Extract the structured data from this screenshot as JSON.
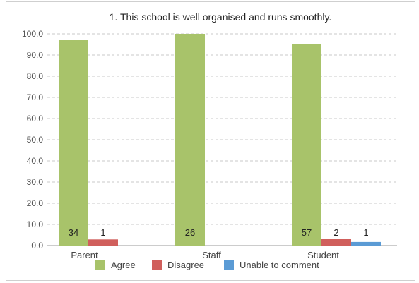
{
  "chart_data": {
    "type": "bar",
    "title": "1. This school is well organised and runs smoothly.",
    "xlabel": "",
    "ylabel": "",
    "ylim": [
      0,
      100
    ],
    "yticks": [
      "0.0",
      "10.0",
      "20.0",
      "30.0",
      "40.0",
      "50.0",
      "60.0",
      "70.0",
      "80.0",
      "90.0",
      "100.0"
    ],
    "grid": true,
    "legend_position": "bottom",
    "categories": [
      "Parent",
      "Staff",
      "Student"
    ],
    "series": [
      {
        "name": "Agree",
        "color": "#a8c36a",
        "values": [
          97.1,
          100.0,
          95.0
        ],
        "labels": [
          "34",
          "26",
          "57"
        ]
      },
      {
        "name": "Disagree",
        "color": "#d05f5c",
        "values": [
          2.9,
          0,
          3.3
        ],
        "labels": [
          "1",
          "",
          "2"
        ]
      },
      {
        "name": "Unable to comment",
        "color": "#5b9bd5",
        "values": [
          0,
          0,
          1.7
        ],
        "labels": [
          "",
          "",
          "1"
        ]
      }
    ]
  }
}
